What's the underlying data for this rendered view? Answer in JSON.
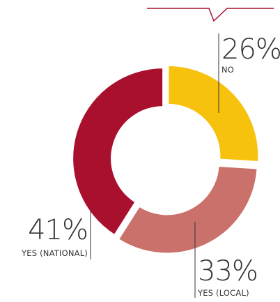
{
  "chart_data": {
    "type": "donut",
    "categories": [
      "NO",
      "YES (LOCAL)",
      "YES (NATIONAL)"
    ],
    "values": [
      26,
      33,
      41
    ],
    "value_labels": [
      "26%",
      "33%",
      "41%"
    ],
    "colors": [
      "#F6C20E",
      "#C9716A",
      "#A8102E"
    ],
    "legend": "none"
  }
}
